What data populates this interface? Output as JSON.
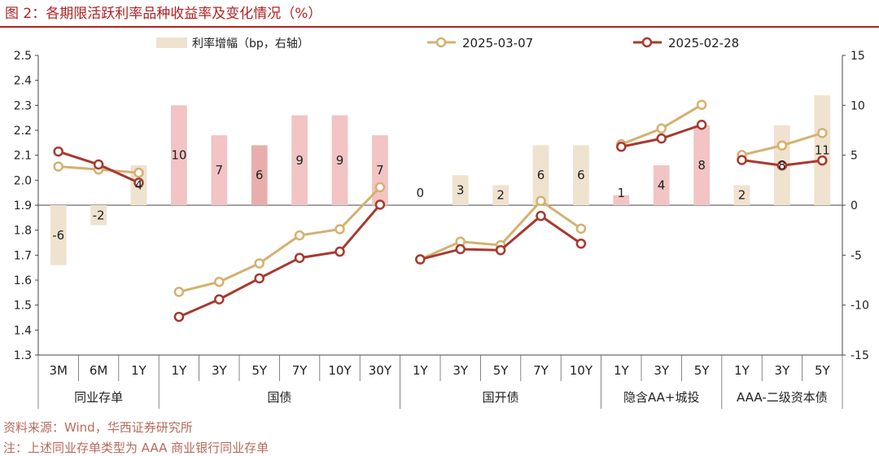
{
  "title": "图 2：各期限活跃利率品种收益率及变化情况（%）",
  "source": "资料来源：Wind，华西证券研究所",
  "note": "注：上述同业存单类型为 AAA 商业银行同业存单",
  "chart_data": {
    "type": "bar+line",
    "categories": [
      "3M",
      "6M",
      "1Y",
      "1Y",
      "3Y",
      "5Y",
      "7Y",
      "10Y",
      "30Y",
      "1Y",
      "3Y",
      "5Y",
      "7Y",
      "10Y",
      "1Y",
      "3Y",
      "5Y",
      "1Y",
      "3Y",
      "5Y"
    ],
    "groups": [
      {
        "label": "同业存单",
        "count": 3
      },
      {
        "label": "国债",
        "count": 6
      },
      {
        "label": "国开债",
        "count": 5
      },
      {
        "label": "隐含AA+城投",
        "count": 3
      },
      {
        "label": "AAA-二级资本债",
        "count": 3
      }
    ],
    "left_axis": {
      "ylim": [
        1.3,
        2.5
      ],
      "ticks": [
        "1.3",
        "1.4",
        "1.5",
        "1.6",
        "1.7",
        "1.8",
        "1.9",
        "2.0",
        "2.1",
        "2.2",
        "2.3",
        "2.4",
        "2.5"
      ]
    },
    "right_axis": {
      "ylim": [
        -15,
        15
      ],
      "ticks": [
        "-15",
        "-10",
        "-5",
        "0",
        "5",
        "10",
        "15"
      ]
    },
    "bars": {
      "name": "利率增幅（bp，右轴）",
      "values": [
        -6,
        -2,
        4,
        10,
        7,
        6,
        9,
        9,
        7,
        0,
        3,
        2,
        6,
        6,
        1,
        4,
        8,
        2,
        8,
        11
      ],
      "labels": [
        "-6",
        "-2",
        "4",
        "10",
        "7",
        "6",
        "9",
        "9",
        "7",
        "0",
        "3",
        "2",
        "6",
        "6",
        "1",
        "4",
        "8",
        "2",
        "8",
        "11"
      ],
      "bar_colors": [
        "#efe2cf",
        "#efe2cf",
        "#efe2cf",
        "#f2c4c4",
        "#f2c4c4",
        "#e8aeae",
        "#f2c4c4",
        "#f2c4c4",
        "#f2c4c4",
        "#efe2cf",
        "#efe2cf",
        "#efe2cf",
        "#efe2cf",
        "#efe2cf",
        "#f2c4c4",
        "#f2c4c4",
        "#f2c4c4",
        "#efe2cf",
        "#efe2cf",
        "#efe2cf"
      ]
    },
    "series": [
      {
        "name": "2025-03-07",
        "color": "#d4b170",
        "segments": [
          [
            0,
            2
          ],
          [
            3,
            8
          ],
          [
            9,
            13
          ],
          [
            14,
            16
          ],
          [
            17,
            19
          ]
        ],
        "values": [
          2.055,
          2.043,
          2.03,
          1.553,
          1.593,
          1.667,
          1.779,
          1.804,
          1.972,
          1.683,
          1.754,
          1.74,
          1.917,
          1.806,
          2.144,
          2.207,
          2.302,
          2.101,
          2.139,
          2.189
        ]
      },
      {
        "name": "2025-02-28",
        "color": "#a8392e",
        "segments": [
          [
            0,
            2
          ],
          [
            3,
            8
          ],
          [
            9,
            13
          ],
          [
            14,
            16
          ],
          [
            17,
            19
          ]
        ],
        "values": [
          2.115,
          2.063,
          1.99,
          1.453,
          1.523,
          1.607,
          1.689,
          1.714,
          1.902,
          1.683,
          1.724,
          1.72,
          1.857,
          1.746,
          2.134,
          2.167,
          2.222,
          2.081,
          2.059,
          2.079
        ]
      }
    ],
    "colors": {
      "bar_beige": "#efe2cf",
      "bar_pink": "#f2c4c4",
      "bar_pink_dark": "#e8aeae",
      "accent_red": "#b22222",
      "line_gold": "#d4b170",
      "line_red": "#a8392e"
    }
  }
}
